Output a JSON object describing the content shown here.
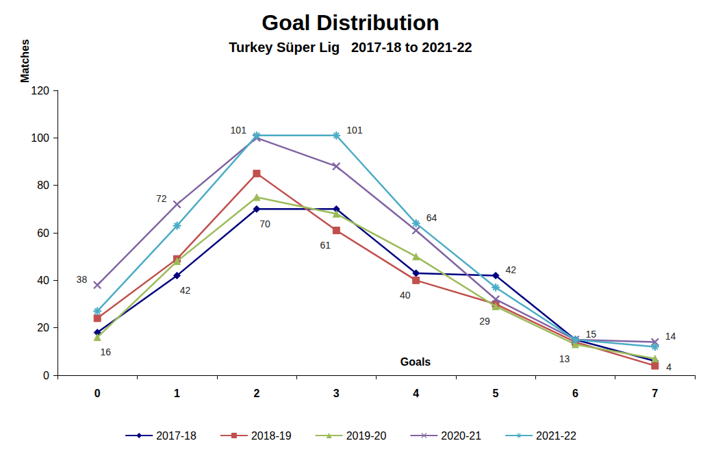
{
  "chart_data": {
    "type": "line",
    "title": "Goal Distribution",
    "subtitle": "Turkey Süper Lig   2017-18 to 2021-22",
    "x_label": "Goals",
    "y_label": "Matches",
    "categories": [
      "0",
      "1",
      "2",
      "3",
      "4",
      "5",
      "6",
      "7"
    ],
    "ylim": [
      0,
      120
    ],
    "yticks": [
      0,
      20,
      40,
      60,
      80,
      100,
      120
    ],
    "grid": false,
    "legend": "bottom",
    "series": [
      {
        "name": "2017-18",
        "color": "#000080",
        "marker": "diamond",
        "values": [
          18,
          42,
          70,
          70,
          43,
          42,
          15,
          6
        ],
        "value_labels": [
          null,
          "42",
          "70",
          null,
          null,
          "42",
          null,
          null
        ]
      },
      {
        "name": "2018-19",
        "color": "#c0504d",
        "marker": "square",
        "values": [
          24,
          49,
          85,
          61,
          40,
          30,
          14,
          4
        ],
        "value_labels": [
          null,
          null,
          null,
          "61",
          "40",
          null,
          null,
          "4"
        ]
      },
      {
        "name": "2019-20",
        "color": "#9bbb59",
        "marker": "triangle",
        "values": [
          16,
          48,
          75,
          68,
          50,
          29,
          13,
          7
        ],
        "value_labels": [
          "16",
          null,
          null,
          null,
          null,
          "29",
          "13",
          null
        ]
      },
      {
        "name": "2020-21",
        "color": "#8064a2",
        "marker": "x",
        "values": [
          38,
          72,
          100,
          88,
          61,
          32,
          15,
          14
        ],
        "value_labels": [
          "38",
          "72",
          null,
          null,
          null,
          null,
          null,
          "14"
        ]
      },
      {
        "name": "2021-22",
        "color": "#4bacc6",
        "marker": "star",
        "values": [
          27,
          63,
          101,
          101,
          64,
          37,
          15,
          12
        ],
        "value_labels": [
          null,
          null,
          "101",
          "101",
          "64",
          null,
          "15",
          null
        ]
      }
    ]
  }
}
